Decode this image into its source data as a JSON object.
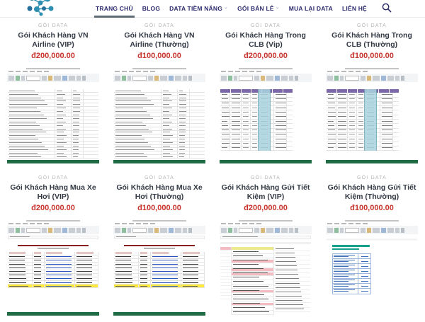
{
  "header": {
    "logo": "data-network-logo",
    "nav_items": [
      {
        "id": "trang-chu",
        "label": "TRANG CHỦ",
        "active": true,
        "dropdown": false
      },
      {
        "id": "blog",
        "label": "BLOG",
        "active": false,
        "dropdown": false
      },
      {
        "id": "data-tiem-nang",
        "label": "DATA TIỀM NĂNG",
        "active": false,
        "dropdown": true
      },
      {
        "id": "goi-ban-le",
        "label": "GÓI BÁN LẺ",
        "active": false,
        "dropdown": true
      },
      {
        "id": "mua-lai-data",
        "label": "MUA LẠI DATA",
        "active": false,
        "dropdown": false
      },
      {
        "id": "lien-he",
        "label": "LIÊN HỆ",
        "active": false,
        "dropdown": false
      }
    ],
    "search_icon": "search-icon"
  },
  "products": [
    {
      "category": "GÓI DATA",
      "title": "Gói Khách Hàng VN Airline (VIP)",
      "price": "đ200,000.00",
      "thumb": "excel-plain"
    },
    {
      "category": "GÓI DATA",
      "title": "Gói Khách Hàng VN Airline (Thường)",
      "price": "đ100,000.00",
      "thumb": "excel-plain"
    },
    {
      "category": "GÓI DATA",
      "title": "Gói Khách Hàng Trong CLB (Vip)",
      "price": "đ200,000.00",
      "thumb": "excel-purple-grid"
    },
    {
      "category": "GÓI DATA",
      "title": "Gói Khách Hàng Trong CLB (Thường)",
      "price": "đ100,000.00",
      "thumb": "excel-purple-grid"
    },
    {
      "category": "GÓI DATA",
      "title": "Gói Khách Hàng Mua Xe Hơi (VIP)",
      "price": "đ200,000.00",
      "thumb": "excel-contact-list"
    },
    {
      "category": "GÓI DATA",
      "title": "Gói Khách Hàng Mua Xe Hơi (Thường)",
      "price": "đ100,000.00",
      "thumb": "excel-contact-list"
    },
    {
      "category": "GÓI DATA",
      "title": "Gói Khách Hàng Gửi Tiết Kiệm (VIP)",
      "price": "đ200,000.00",
      "thumb": "excel-pink-rows"
    },
    {
      "category": "GÓI DATA",
      "title": "Gói Khách Hàng Gửi Tiết Kiệm (Thường)",
      "price": "đ100,000.00",
      "thumb": "excel-blue-doc"
    }
  ],
  "colors": {
    "nav_text": "#2e2d6e",
    "active_underline": "#5d6b74",
    "category_text": "#b5b5b5",
    "title_text": "#333a45",
    "price_text": "#c8342c",
    "excel_green": "#1f6b44",
    "purple_header": "#7c68a8",
    "blue_column": "#a9d3de",
    "yellow_highlight": "#ffe93b",
    "pink_highlight": "#f3bcc3",
    "pale_yellow_header": "#efe98e",
    "teal_heading": "#17a08c",
    "hyperlink_blue": "#2a52be",
    "dark_red_title": "#8a1f1f",
    "logo_teal": "#2f8fb0",
    "logo_dark_blue": "#256f9a"
  }
}
